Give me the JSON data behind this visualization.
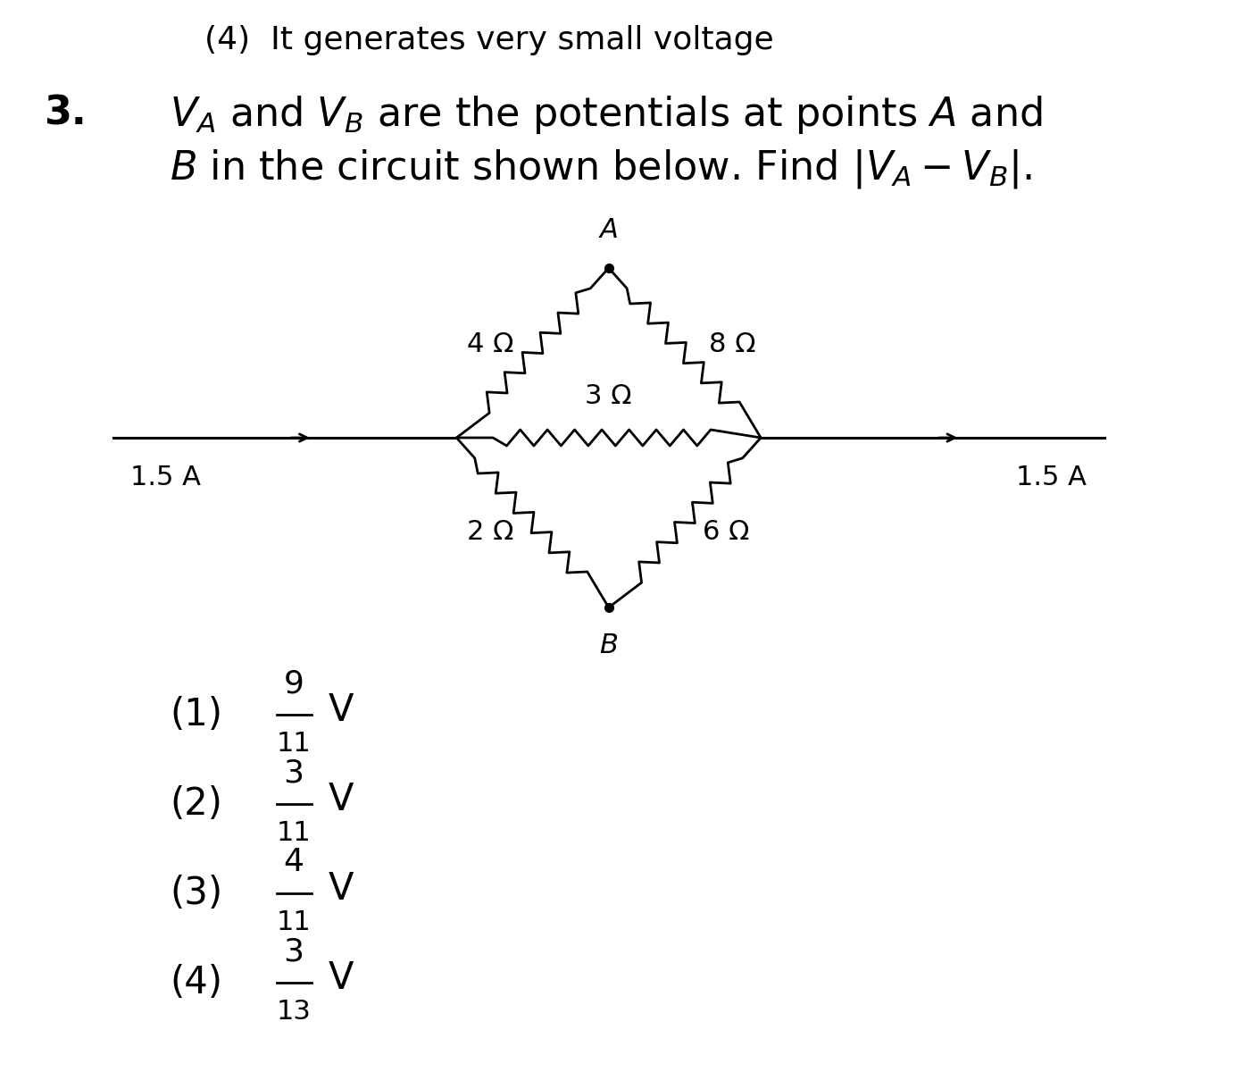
{
  "bg_color": "#ffffff",
  "title_line1": "(4)  It generates very small voltage",
  "question_number": "3.",
  "options": [
    [
      "(1)",
      "9",
      "11"
    ],
    [
      "(2)",
      "3",
      "11"
    ],
    [
      "(3)",
      "4",
      "11"
    ],
    [
      "(4)",
      "3",
      "13"
    ]
  ],
  "circuit": {
    "A_label": "A",
    "B_label": "B",
    "res_top_left": "4 Ω",
    "res_top_right": "8 Ω",
    "res_middle": "3 Ω",
    "res_bot_left": "2 Ω",
    "res_bot_right": "6 Ω",
    "current_left": "1.5 A",
    "current_right": "1.5 A"
  }
}
